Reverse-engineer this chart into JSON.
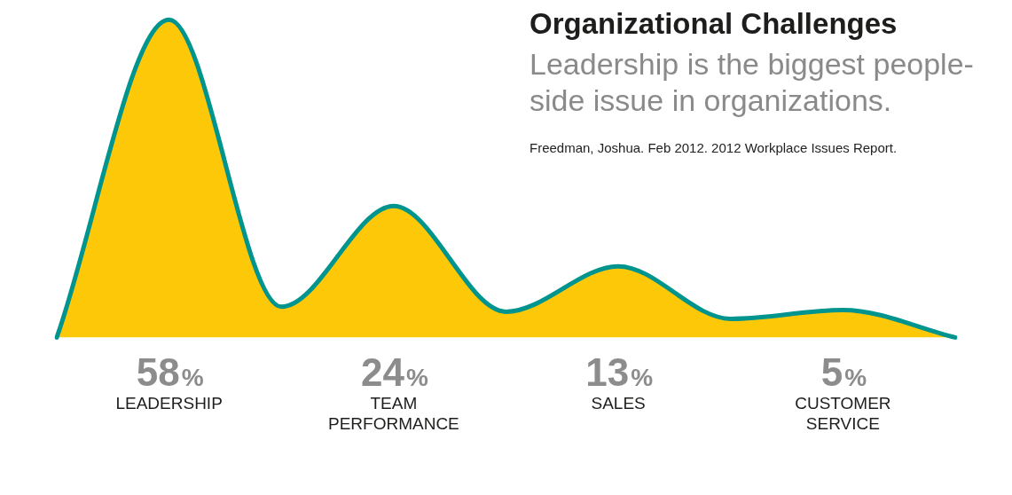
{
  "chart_data": {
    "type": "area",
    "title": "Organizational Challenges",
    "subtitle": "Leadership is the biggest people-side issue in organizations.",
    "annotations": [
      "Freedman, Joshua. Feb 2012. 2012 Workplace Issues Report."
    ],
    "categories": [
      null,
      "LEADERSHIP",
      null,
      "TEAM PERFORMANCE",
      null,
      "SALES",
      null,
      "CUSTOMER SERVICE",
      null
    ],
    "values": [
      0,
      58,
      5.6,
      24,
      4.7,
      13,
      3.4,
      5,
      0
    ],
    "value_labels": [
      null,
      "58%",
      null,
      "24%",
      null,
      "13%",
      null,
      "5%",
      null
    ],
    "color": "#fcc808",
    "tick_labels": "x",
    "grid": false,
    "legend": false,
    "marker": "none",
    "line_style": "solid"
  }
}
